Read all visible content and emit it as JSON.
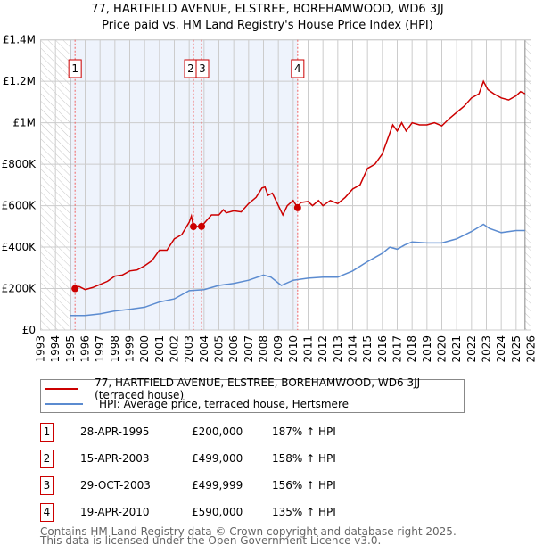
{
  "title": "77, HARTFIELD AVENUE, ELSTREE, BOREHAMWOOD, WD6 3JJ",
  "subtitle": "Price paid vs. HM Land Registry's House Price Index (HPI)",
  "colors": {
    "property": "#cc0000",
    "hpi": "#5b8bd0",
    "shade": "#eef3fc",
    "grid": "#cccccc"
  },
  "chart_data": {
    "type": "line",
    "xlim": [
      1993,
      2026
    ],
    "ylim": [
      0,
      1400000
    ],
    "yticks": [
      {
        "v": 0,
        "label": "£0"
      },
      {
        "v": 200000,
        "label": "£200K"
      },
      {
        "v": 400000,
        "label": "£400K"
      },
      {
        "v": 600000,
        "label": "£600K"
      },
      {
        "v": 800000,
        "label": "£800K"
      },
      {
        "v": 1000000,
        "label": "£1M"
      },
      {
        "v": 1200000,
        "label": "£1.2M"
      },
      {
        "v": 1400000,
        "label": "£1.4M"
      }
    ],
    "xticks": [
      "1993",
      "1994",
      "1995",
      "1996",
      "1997",
      "1998",
      "1999",
      "2000",
      "2001",
      "2002",
      "2003",
      "2004",
      "2005",
      "2006",
      "2007",
      "2008",
      "2009",
      "2010",
      "2011",
      "2012",
      "2013",
      "2014",
      "2015",
      "2016",
      "2017",
      "2018",
      "2019",
      "2020",
      "2021",
      "2022",
      "2023",
      "2024",
      "2025",
      "2026"
    ],
    "shaded_range": [
      1995.0,
      2010.3
    ],
    "data_range": [
      1995.0,
      2025.6
    ],
    "series": [
      {
        "name": "77, HARTFIELD AVENUE, ELSTREE, BOREHAMWOOD, WD6 3JJ (terraced house)",
        "color": "#cc0000",
        "x": [
          1995.32,
          1995.6,
          1996,
          1996.5,
          1997,
          1997.5,
          1998,
          1998.5,
          1999,
          1999.5,
          2000,
          2000.5,
          2001,
          2001.5,
          2002,
          2002.5,
          2003.0,
          2003.15,
          2003.29,
          2003.83,
          2004.5,
          2005,
          2005.3,
          2005.5,
          2006,
          2006.5,
          2007,
          2007.5,
          2007.9,
          2008.1,
          2008.3,
          2008.6,
          2009.0,
          2009.3,
          2009.6,
          2010.0,
          2010.3,
          2010.5,
          2011,
          2011.3,
          2011.7,
          2012,
          2012.5,
          2013,
          2013.5,
          2014,
          2014.5,
          2015,
          2015.5,
          2016,
          2016.3,
          2016.7,
          2017,
          2017.3,
          2017.6,
          2018,
          2018.5,
          2019,
          2019.5,
          2020,
          2020.5,
          2021,
          2021.5,
          2022,
          2022.5,
          2022.8,
          2023.1,
          2023.5,
          2024,
          2024.5,
          2025,
          2025.3,
          2025.6
        ],
        "y": [
          200000,
          210000,
          195000,
          205000,
          220000,
          235000,
          260000,
          265000,
          285000,
          290000,
          310000,
          335000,
          385000,
          385000,
          440000,
          460000,
          520000,
          550000,
          499000,
          499999,
          555000,
          555000,
          580000,
          565000,
          575000,
          570000,
          610000,
          640000,
          685000,
          690000,
          650000,
          660000,
          600000,
          555000,
          600000,
          625000,
          590000,
          615000,
          620000,
          600000,
          625000,
          600000,
          625000,
          610000,
          640000,
          680000,
          700000,
          780000,
          800000,
          850000,
          910000,
          990000,
          960000,
          1000000,
          960000,
          1000000,
          990000,
          990000,
          1000000,
          985000,
          1020000,
          1050000,
          1080000,
          1120000,
          1140000,
          1200000,
          1160000,
          1140000,
          1120000,
          1110000,
          1130000,
          1150000,
          1140000
        ]
      },
      {
        "name": "HPI: Average price, terraced house, Hertsmere",
        "color": "#5b8bd0",
        "x": [
          1995,
          1996,
          1997,
          1998,
          1999,
          2000,
          2001,
          2002,
          2003,
          2004,
          2005,
          2006,
          2007,
          2008,
          2008.5,
          2009.2,
          2010,
          2011,
          2012,
          2013,
          2014,
          2015,
          2016,
          2016.5,
          2017,
          2017.5,
          2018,
          2019,
          2020,
          2021,
          2022,
          2022.8,
          2023.2,
          2024,
          2025,
          2025.6
        ],
        "y": [
          70000,
          70000,
          78000,
          92000,
          100000,
          110000,
          135000,
          150000,
          190000,
          195000,
          215000,
          225000,
          240000,
          265000,
          255000,
          215000,
          240000,
          250000,
          255000,
          255000,
          285000,
          330000,
          370000,
          400000,
          390000,
          410000,
          425000,
          420000,
          420000,
          440000,
          475000,
          510000,
          490000,
          470000,
          480000,
          480000
        ]
      }
    ],
    "sales": [
      {
        "n": "1",
        "x": 1995.32,
        "price": 200000,
        "date": "28-APR-1995",
        "price_label": "£200,000",
        "hpi": "187% ↑ HPI"
      },
      {
        "n": "2",
        "x": 2003.29,
        "price": 499000,
        "date": "15-APR-2003",
        "price_label": "£499,000",
        "hpi": "158% ↑ HPI"
      },
      {
        "n": "3",
        "x": 2003.83,
        "price": 499999,
        "date": "29-OCT-2003",
        "price_label": "£499,999",
        "hpi": "156% ↑ HPI"
      },
      {
        "n": "4",
        "x": 2010.3,
        "price": 590000,
        "date": "19-APR-2010",
        "price_label": "£590,000",
        "hpi": "135% ↑ HPI"
      }
    ]
  },
  "legend": {
    "property": "77, HARTFIELD AVENUE, ELSTREE, BOREHAMWOOD, WD6 3JJ (terraced house)",
    "hpi": "HPI: Average price, terraced house, Hertsmere"
  },
  "footer": {
    "line1": "Contains HM Land Registry data © Crown copyright and database right 2025.",
    "line2": "This data is licensed under the Open Government Licence v3.0."
  }
}
